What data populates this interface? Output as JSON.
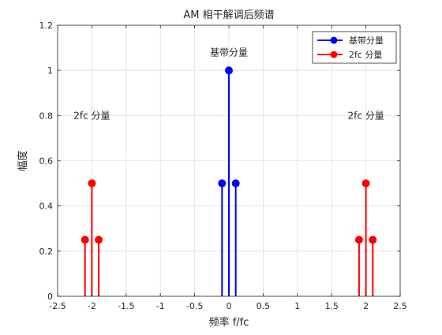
{
  "chart_data": {
    "type": "stem",
    "title": "AM 相干解调后频谱",
    "xlabel": "频率 f/fc",
    "ylabel": "幅度",
    "xlim": [
      -2.5,
      2.5
    ],
    "ylim": [
      0,
      1.2
    ],
    "xticks": [
      -2.5,
      -2,
      -1.5,
      -1,
      -0.5,
      0,
      0.5,
      1,
      1.5,
      2,
      2.5
    ],
    "yticks": [
      0,
      0.2,
      0.4,
      0.6,
      0.8,
      1,
      1.2
    ],
    "xtick_labels": [
      "-2.5",
      "-2",
      "-1.5",
      "-1",
      "-0.5",
      "0",
      "0.5",
      "1",
      "1.5",
      "2",
      "2.5"
    ],
    "ytick_labels": [
      "0",
      "0.2",
      "0.4",
      "0.6",
      "0.8",
      "1",
      "1.2"
    ],
    "grid": true,
    "legend_position": "top-right",
    "series": [
      {
        "name": "基带分量",
        "color": "#0000ff",
        "x": [
          -0.1,
          0,
          0.1
        ],
        "y": [
          0.5,
          1,
          0.5
        ]
      },
      {
        "name": "2fc 分量",
        "color": "#ff0000",
        "x": [
          -2.1,
          -2,
          -1.9,
          1.9,
          2,
          2.1
        ],
        "y": [
          0.25,
          0.5,
          0.25,
          0.25,
          0.5,
          0.25
        ]
      }
    ],
    "annotations": [
      {
        "text": "基带分量",
        "x": 0,
        "y": 1.08
      },
      {
        "text": "2fc 分量",
        "x": -2,
        "y": 0.8
      },
      {
        "text": "2fc 分量",
        "x": 2,
        "y": 0.8
      }
    ]
  }
}
